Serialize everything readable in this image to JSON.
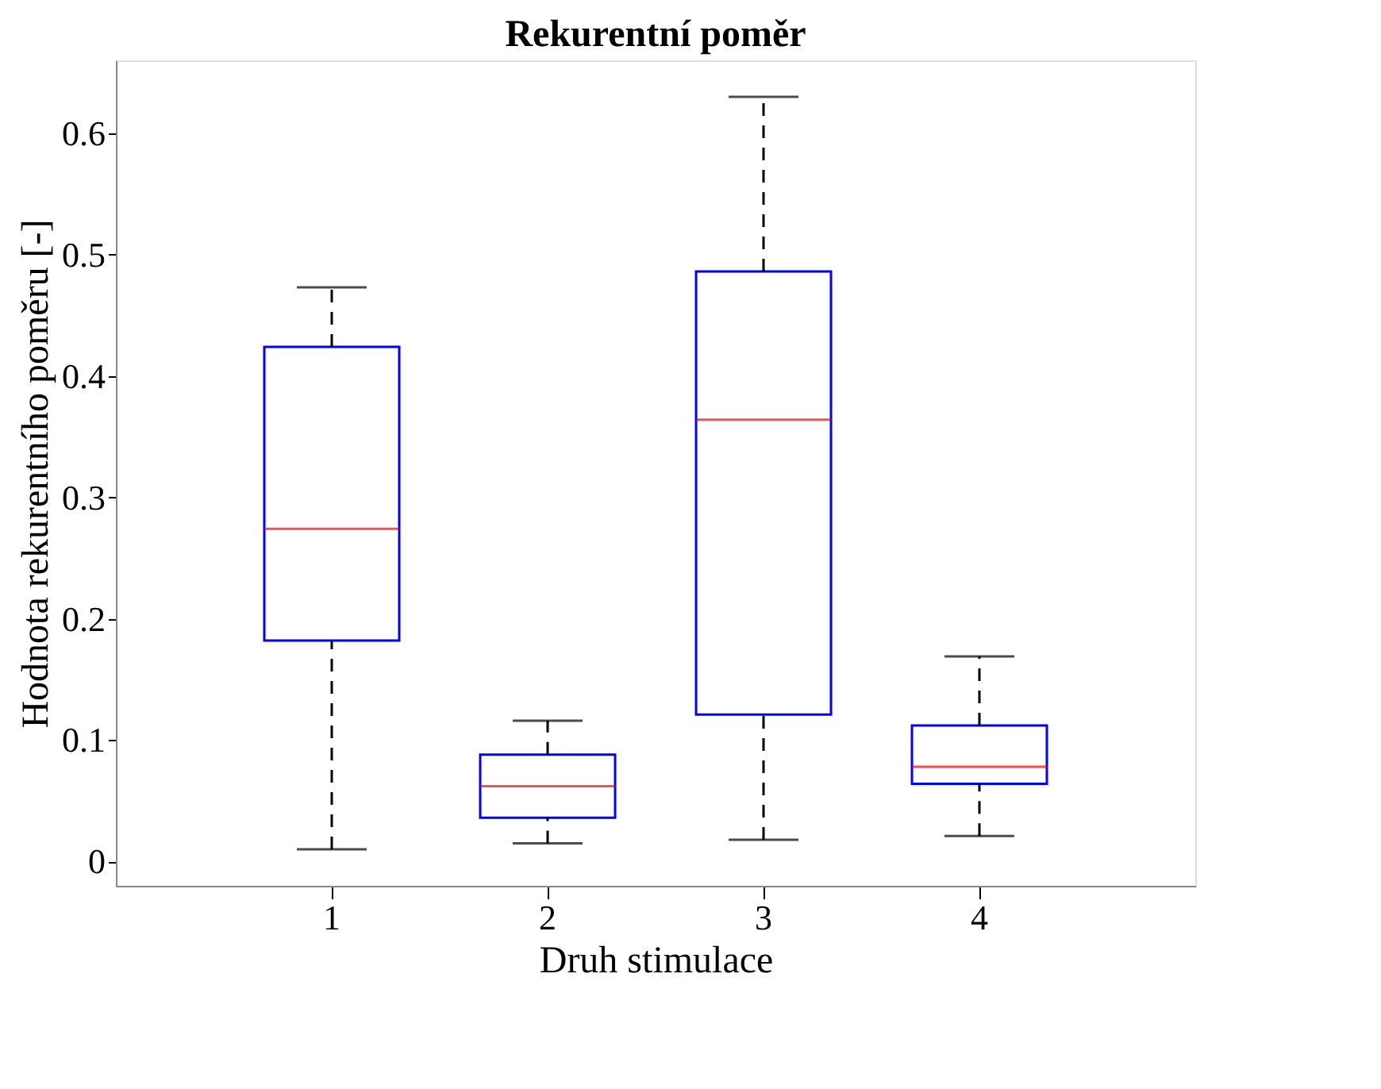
{
  "chart_data": {
    "type": "box",
    "title": "Rekurentní poměr",
    "xlabel": "Druh stimulace",
    "ylabel": "Hodnota rekurentního poměru [-]",
    "categories": [
      "1",
      "2",
      "3",
      "4"
    ],
    "ylim": [
      -0.02,
      0.66
    ],
    "yticks": [
      0,
      0.1,
      0.2,
      0.3,
      0.4,
      0.5,
      0.6
    ],
    "grid": false,
    "series": [
      {
        "color": "#0000ff",
        "boxes": [
          {
            "low": 0.01,
            "q1": 0.182,
            "median": 0.274,
            "q3": 0.424,
            "high": 0.473
          },
          {
            "low": 0.015,
            "q1": 0.036,
            "median": 0.062,
            "q3": 0.088,
            "high": 0.116
          },
          {
            "low": 0.018,
            "q1": 0.121,
            "median": 0.364,
            "q3": 0.486,
            "high": 0.63
          },
          {
            "low": 0.021,
            "q1": 0.064,
            "median": 0.078,
            "q3": 0.112,
            "high": 0.169
          }
        ]
      }
    ]
  }
}
